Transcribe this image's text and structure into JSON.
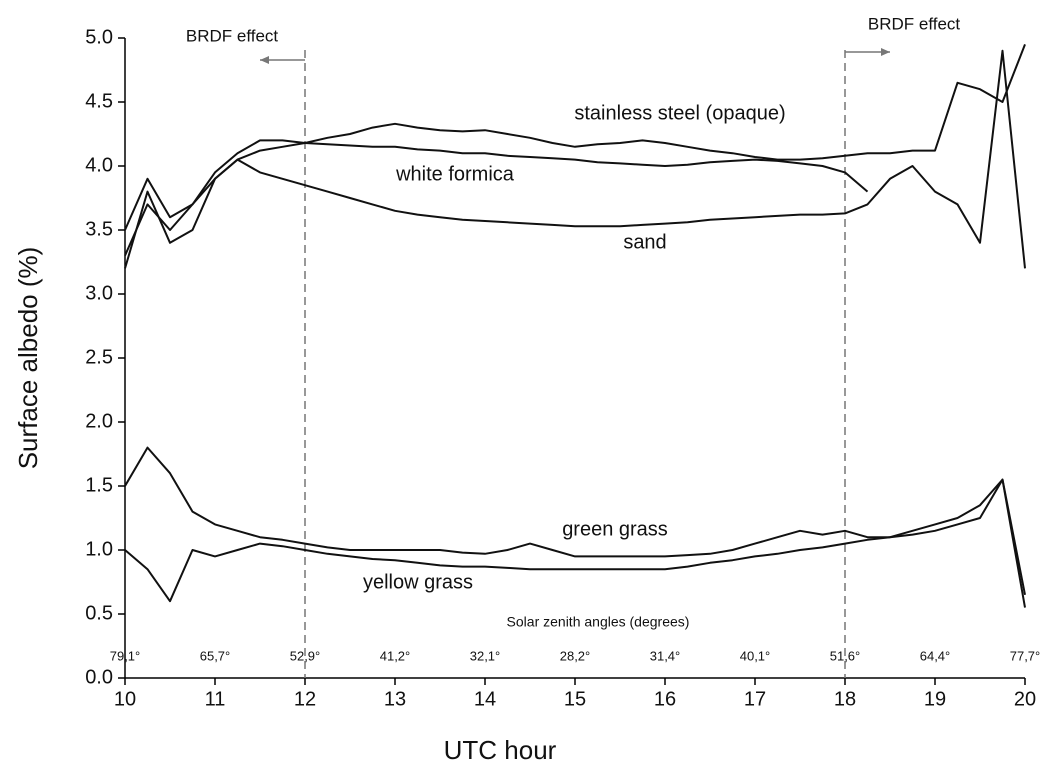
{
  "chart_data": {
    "type": "line",
    "x_label": "UTC hour",
    "y_label": "Surface albedo (%)",
    "x": [
      10,
      10.25,
      10.5,
      10.75,
      11,
      11.25,
      11.5,
      11.75,
      12,
      12.25,
      12.5,
      12.75,
      13,
      13.25,
      13.5,
      13.75,
      14,
      14.25,
      14.5,
      14.75,
      15,
      15.25,
      15.5,
      15.75,
      16,
      16.25,
      16.5,
      16.75,
      17,
      17.25,
      17.5,
      17.75,
      18,
      18.25,
      18.5,
      18.75,
      19,
      19.25,
      19.5,
      19.75,
      20
    ],
    "series": [
      {
        "name": "stainless steel (opaque)",
        "color": "#111111",
        "values": [
          3.5,
          3.9,
          3.6,
          3.7,
          3.9,
          4.05,
          4.12,
          4.15,
          4.18,
          4.22,
          4.25,
          4.3,
          4.33,
          4.3,
          4.28,
          4.27,
          4.28,
          4.25,
          4.22,
          4.18,
          4.15,
          4.17,
          4.18,
          4.2,
          4.18,
          4.15,
          4.12,
          4.1,
          4.07,
          4.05,
          4.05,
          4.06,
          4.08,
          4.1,
          4.1,
          4.12,
          4.12,
          4.65,
          4.6,
          4.5,
          4.95
        ]
      },
      {
        "name": "white formica",
        "color": "#111111",
        "values": [
          3.3,
          3.7,
          3.5,
          3.7,
          3.95,
          4.1,
          4.2,
          4.2,
          4.18,
          4.17,
          4.16,
          4.15,
          4.15,
          4.13,
          4.12,
          4.1,
          4.1,
          4.08,
          4.07,
          4.06,
          4.05,
          4.03,
          4.02,
          4.01,
          4.0,
          4.01,
          4.03,
          4.04,
          4.05,
          4.04,
          4.02,
          4.0,
          3.95,
          3.8,
          null,
          null,
          null,
          null,
          null,
          null,
          null
        ]
      },
      {
        "name": "sand",
        "color": "#111111",
        "values": [
          3.2,
          3.8,
          3.4,
          3.5,
          3.9,
          4.05,
          3.95,
          3.9,
          3.85,
          3.8,
          3.75,
          3.7,
          3.65,
          3.62,
          3.6,
          3.58,
          3.57,
          3.56,
          3.55,
          3.54,
          3.53,
          3.53,
          3.53,
          3.54,
          3.55,
          3.56,
          3.58,
          3.59,
          3.6,
          3.61,
          3.62,
          3.62,
          3.63,
          3.7,
          3.9,
          4.0,
          3.8,
          3.7,
          3.4,
          4.9,
          3.2
        ]
      },
      {
        "name": "green grass",
        "color": "#111111",
        "values": [
          1.5,
          1.8,
          1.6,
          1.3,
          1.2,
          1.15,
          1.1,
          1.08,
          1.05,
          1.02,
          1.0,
          1.0,
          1.0,
          1.0,
          1.0,
          0.98,
          0.97,
          1.0,
          1.05,
          1.0,
          0.95,
          0.95,
          0.95,
          0.95,
          0.95,
          0.96,
          0.97,
          1.0,
          1.05,
          1.1,
          1.15,
          1.12,
          1.15,
          1.1,
          1.1,
          1.15,
          1.2,
          1.25,
          1.35,
          1.55,
          0.65
        ]
      },
      {
        "name": "yellow grass",
        "color": "#111111",
        "values": [
          1.0,
          0.85,
          0.6,
          1.0,
          0.95,
          1.0,
          1.05,
          1.03,
          1.0,
          0.97,
          0.95,
          0.93,
          0.92,
          0.9,
          0.88,
          0.87,
          0.87,
          0.86,
          0.85,
          0.85,
          0.85,
          0.85,
          0.85,
          0.85,
          0.85,
          0.87,
          0.9,
          0.92,
          0.95,
          0.97,
          1.0,
          1.02,
          1.05,
          1.08,
          1.1,
          1.12,
          1.15,
          1.2,
          1.25,
          1.55,
          0.55
        ]
      }
    ],
    "xlim": [
      10,
      20
    ],
    "xticks": [
      10,
      11,
      12,
      13,
      14,
      15,
      16,
      17,
      18,
      19,
      20
    ],
    "ylim": [
      0,
      5
    ],
    "yticks": [
      {
        "value": 0,
        "label": "0.0"
      },
      {
        "value": 0.5,
        "label": "0.5"
      },
      {
        "value": 1,
        "label": "1.0"
      },
      {
        "value": 1.5,
        "label": "1.5"
      },
      {
        "value": 2,
        "label": "2.0"
      },
      {
        "value": 2.5,
        "label": "2.5"
      },
      {
        "value": 3,
        "label": "3.0"
      },
      {
        "value": 3.5,
        "label": "3.5"
      },
      {
        "value": 4,
        "label": "4.0"
      },
      {
        "value": 4.5,
        "label": "4.5"
      },
      {
        "value": 5,
        "label": "5.0"
      }
    ],
    "grid": false,
    "reference_lines_x": [
      12,
      18
    ],
    "annotations": [
      "BRDF effect",
      "BRDF effect",
      "Solar zenith angles (degrees)"
    ],
    "zenith_angles": {
      "x": [
        10,
        11,
        12,
        13,
        14,
        15,
        16,
        17,
        18,
        19,
        20
      ],
      "labels": [
        "79,1°",
        "65,7°",
        "52,9°",
        "41,2°",
        "32,1°",
        "28,2°",
        "31,4°",
        "40,1°",
        "51,6°",
        "64,4°",
        "77,7°"
      ]
    }
  }
}
